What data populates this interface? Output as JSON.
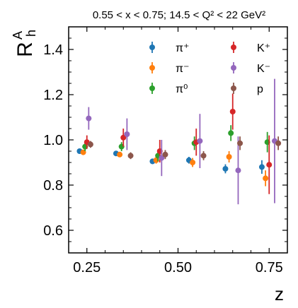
{
  "chart_data": {
    "type": "scatter",
    "title": "0.55 < x < 0.75;  14.5 < Q² < 22 GeV²",
    "xlabel": "z",
    "ylabel": {
      "base": "R",
      "sup": "A",
      "sub": "h"
    },
    "xlim": [
      0.2,
      0.8
    ],
    "ylim": [
      0.5,
      1.5
    ],
    "xticks": [
      0.25,
      0.5,
      0.75
    ],
    "xtick_labels": [
      "0.25",
      "0.50",
      "0.75"
    ],
    "yticks": [
      0.6,
      0.8,
      1.0,
      1.2,
      1.4
    ],
    "ytick_labels": [
      "0.6",
      "0.8",
      "1.0",
      "1.2",
      "1.4"
    ],
    "legend_position": "top-right",
    "legend_columns": 2,
    "series": [
      {
        "name": "π⁺",
        "color": "#1f77b4",
        "points": [
          {
            "x": 0.23,
            "y": 0.95,
            "err": 0.008
          },
          {
            "x": 0.33,
            "y": 0.94,
            "err": 0.008
          },
          {
            "x": 0.43,
            "y": 0.905,
            "err": 0.012
          },
          {
            "x": 0.53,
            "y": 0.91,
            "err": 0.015
          },
          {
            "x": 0.63,
            "y": 0.872,
            "err": 0.02
          },
          {
            "x": 0.73,
            "y": 0.88,
            "err": 0.03
          }
        ]
      },
      {
        "name": "π⁻",
        "color": "#ff7f0e",
        "points": [
          {
            "x": 0.24,
            "y": 0.945,
            "err": 0.01
          },
          {
            "x": 0.34,
            "y": 0.935,
            "err": 0.01
          },
          {
            "x": 0.44,
            "y": 0.91,
            "err": 0.015
          },
          {
            "x": 0.54,
            "y": 0.9,
            "err": 0.02
          },
          {
            "x": 0.64,
            "y": 0.925,
            "err": 0.025
          },
          {
            "x": 0.74,
            "y": 0.83,
            "err": 0.035
          }
        ]
      },
      {
        "name": "π⁰",
        "color": "#2ca02c",
        "points": [
          {
            "x": 0.245,
            "y": 0.97,
            "err": 0.02
          },
          {
            "x": 0.345,
            "y": 0.97,
            "err": 0.02
          },
          {
            "x": 0.445,
            "y": 0.93,
            "err": 0.025
          },
          {
            "x": 0.545,
            "y": 0.985,
            "err": 0.03
          },
          {
            "x": 0.645,
            "y": 1.03,
            "err": 0.035
          },
          {
            "x": 0.745,
            "y": 0.99,
            "err": 0.045
          }
        ]
      },
      {
        "name": "K⁺",
        "color": "#d62728",
        "points": [
          {
            "x": 0.25,
            "y": 0.99,
            "err": 0.03
          },
          {
            "x": 0.35,
            "y": 1.01,
            "err": 0.04
          },
          {
            "x": 0.45,
            "y": 0.95,
            "err": 0.05
          },
          {
            "x": 0.55,
            "y": 0.99,
            "err": 0.06
          },
          {
            "x": 0.65,
            "y": 1.125,
            "err": 0.08
          },
          {
            "x": 0.75,
            "y": 0.89,
            "err": 0.13
          }
        ]
      },
      {
        "name": "K⁻",
        "color": "#9467bd",
        "points": [
          {
            "x": 0.255,
            "y": 1.095,
            "err": 0.05
          },
          {
            "x": 0.36,
            "y": 1.025,
            "err": 0.07
          },
          {
            "x": 0.455,
            "y": 0.92,
            "err": 0.08
          },
          {
            "x": 0.56,
            "y": 0.995,
            "err": 0.12
          },
          {
            "x": 0.665,
            "y": 0.865,
            "err": 0.15
          },
          {
            "x": 0.765,
            "y": 0.995,
            "err": 0.275
          }
        ]
      },
      {
        "name": "p",
        "color": "#8c564b",
        "points": [
          {
            "x": 0.26,
            "y": 0.98,
            "err": 0.015
          },
          {
            "x": 0.37,
            "y": 0.93,
            "err": 0.015
          },
          {
            "x": 0.465,
            "y": 0.935,
            "err": 0.02
          },
          {
            "x": 0.57,
            "y": 0.93,
            "err": 0.02
          },
          {
            "x": 0.67,
            "y": 0.985,
            "err": 0.03
          },
          {
            "x": 0.775,
            "y": 0.985,
            "err": 0.03
          }
        ]
      }
    ]
  }
}
